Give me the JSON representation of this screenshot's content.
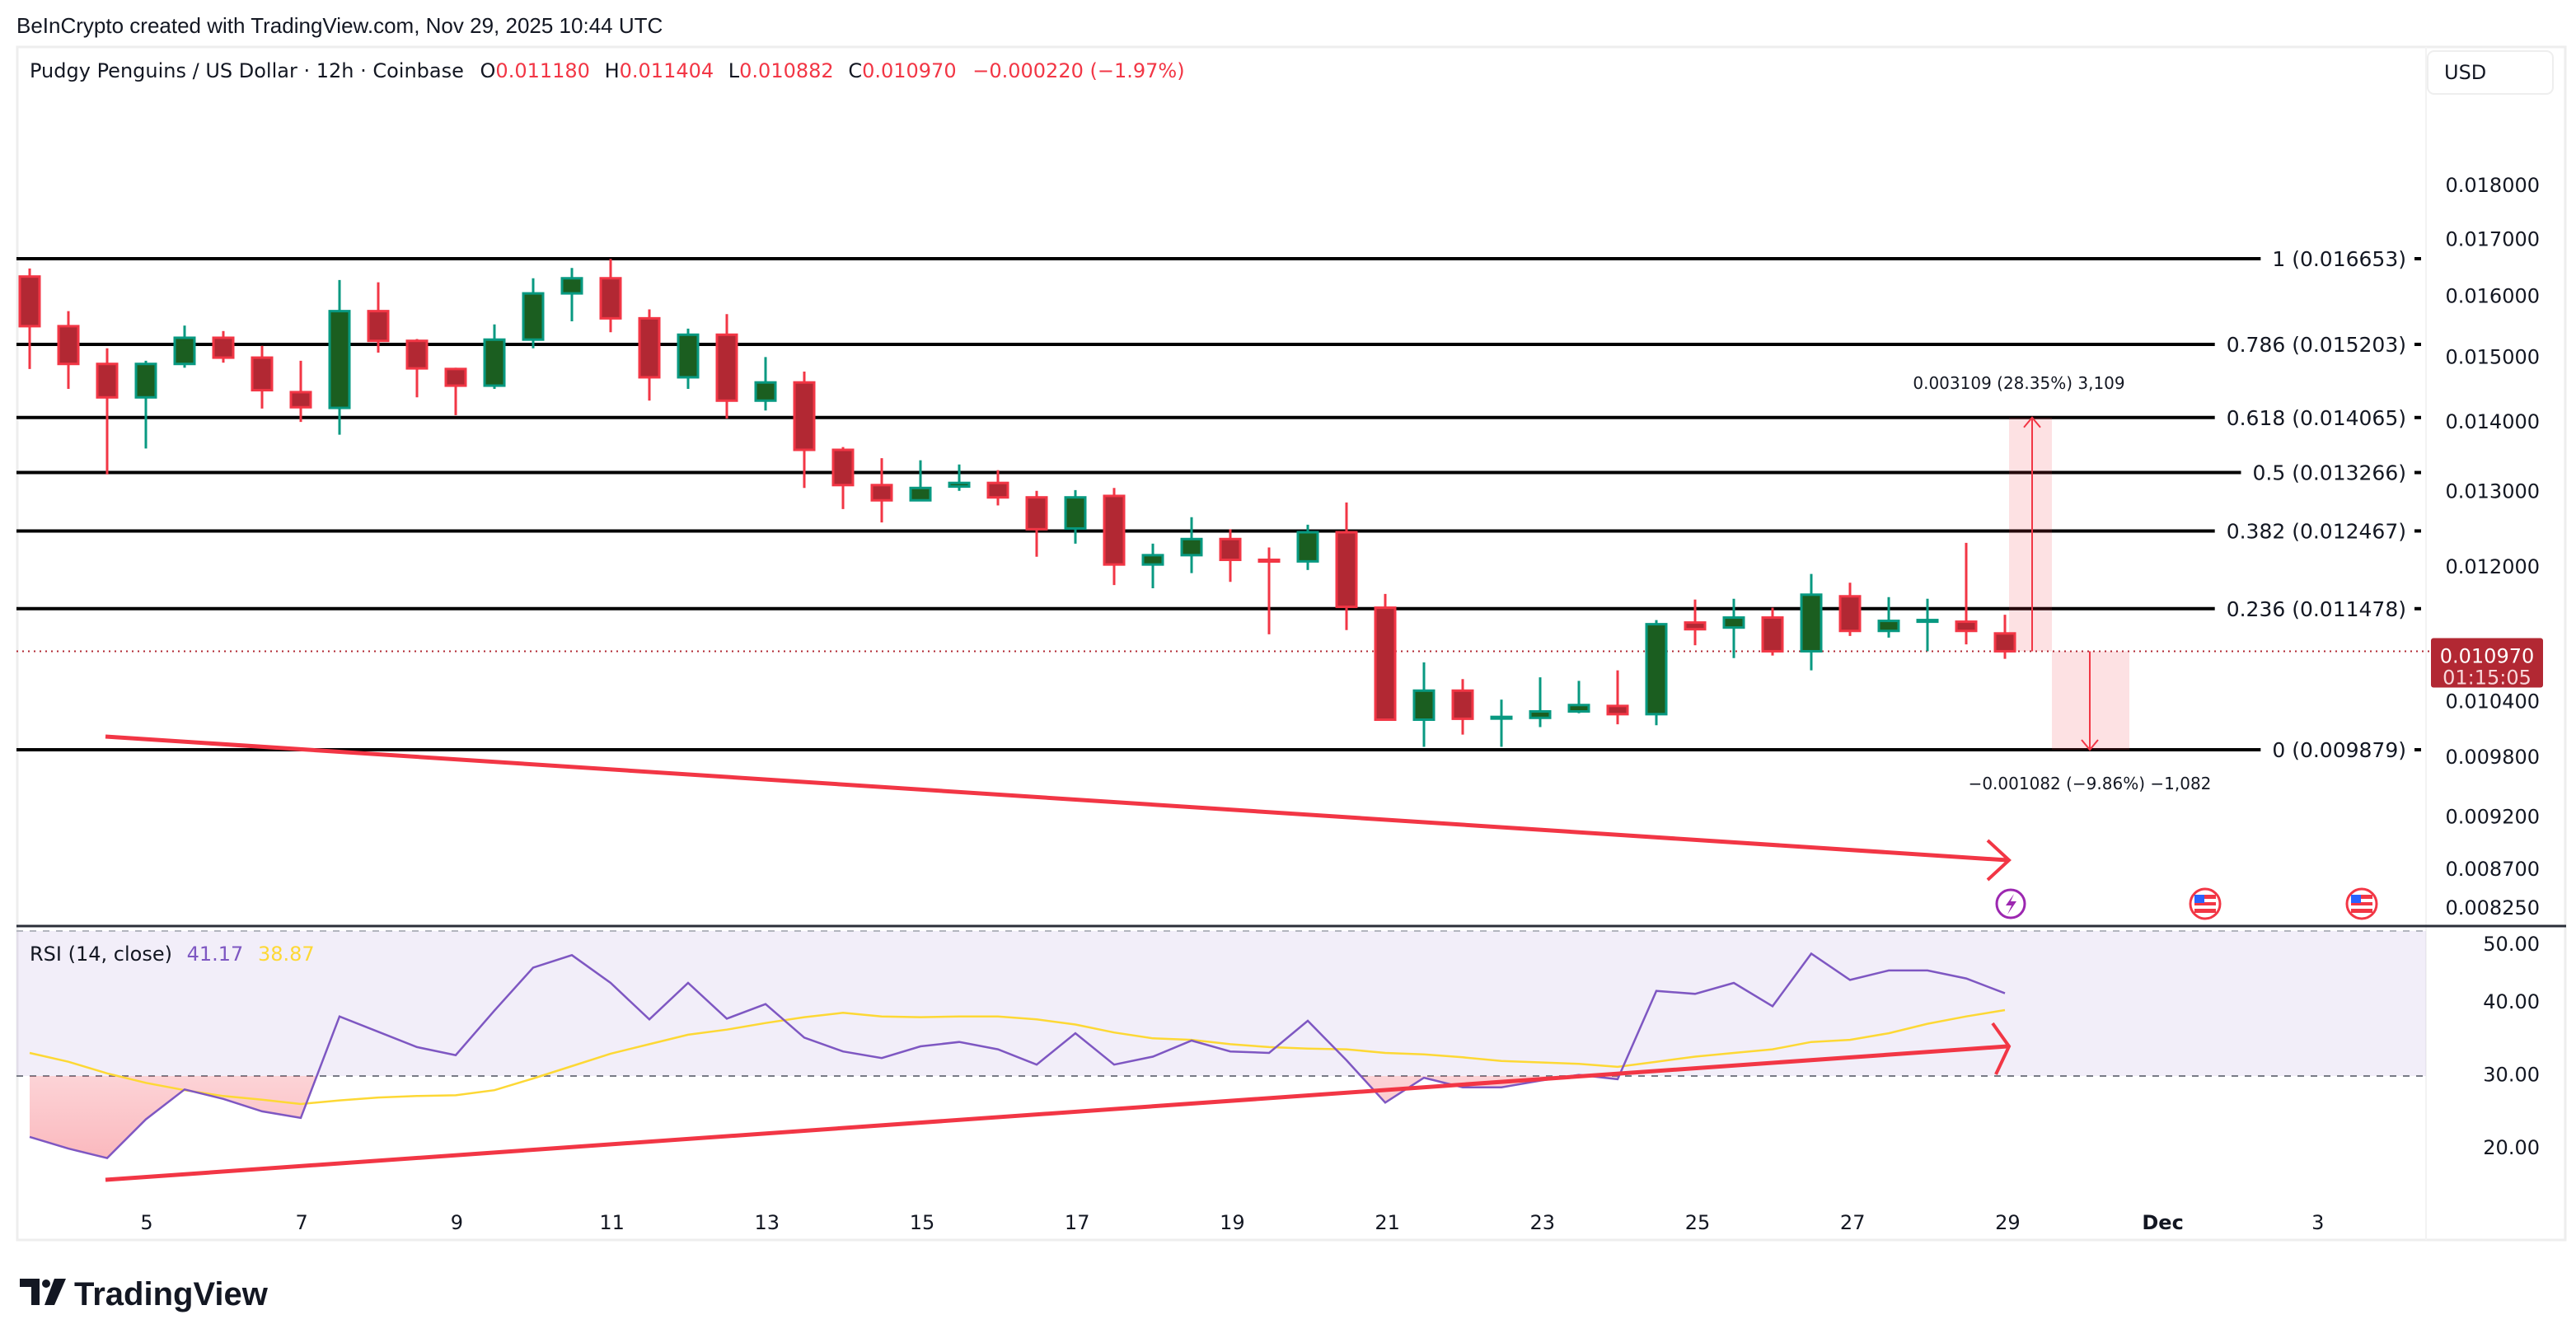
{
  "header": {
    "attribution": "BeInCrypto created with TradingView.com, Nov 29, 2025 10:44 UTC"
  },
  "legend": {
    "symbol": "Pudgy Penguins / US Dollar · 12h · Coinbase",
    "o_label": "O",
    "o": "0.011180",
    "h_label": "H",
    "h": "0.011404",
    "l_label": "L",
    "l": "0.010882",
    "c_label": "C",
    "c": "0.010970",
    "change": "−0.000220 (−1.97%)"
  },
  "currency_button": "USD",
  "current_price": {
    "price": "0.010970",
    "countdown": "01:15:05"
  },
  "measure": {
    "up_label": "0.003109 (28.35%) 3,109",
    "down_label": "−0.001082 (−9.86%) −1,082"
  },
  "rsi_legend": {
    "title": "RSI (14, close)",
    "rsi": "41.17",
    "ma": "38.87"
  },
  "brand": {
    "logo_text": "TradingView"
  },
  "colors": {
    "up_body": "#1b5e20",
    "up_border": "#089981",
    "down_body": "#b22833",
    "down_border": "#f23645",
    "rsi": "#7e57c2",
    "rsi_ma": "#fdd835",
    "trendline": "#f23645"
  },
  "chart_data": [
    {
      "type": "candlestick",
      "title": "Pudgy Penguins / US Dollar · 12h · Coinbase",
      "y_scale": "log",
      "ylim": [
        0.00825,
        0.0185
      ],
      "y_ticks": [
        "0.018000",
        "0.017000",
        "0.016000",
        "0.015000",
        "0.014000",
        "0.013000",
        "0.012000",
        "0.010400",
        "0.009800",
        "0.009200",
        "0.008700",
        "0.008250"
      ],
      "x_ticks": [
        "5",
        "7",
        "9",
        "11",
        "13",
        "15",
        "17",
        "19",
        "21",
        "23",
        "25",
        "27",
        "29",
        "Dec",
        "3"
      ],
      "fib_levels": [
        {
          "ratio": 1,
          "price": 0.016653,
          "label": "1 (0.016653)"
        },
        {
          "ratio": 0.786,
          "price": 0.015203,
          "label": "0.786 (0.015203)"
        },
        {
          "ratio": 0.618,
          "price": 0.014065,
          "label": "0.618 (0.014065)"
        },
        {
          "ratio": 0.5,
          "price": 0.013266,
          "label": "0.5 (0.013266)"
        },
        {
          "ratio": 0.382,
          "price": 0.012467,
          "label": "0.382 (0.012467)"
        },
        {
          "ratio": 0.236,
          "price": 0.011478,
          "label": "0.236 (0.011478)"
        },
        {
          "ratio": 0,
          "price": 0.009879,
          "label": "0 (0.009879)"
        }
      ],
      "ohlc": [
        [
          0.01634,
          0.01648,
          0.01481,
          0.0155
        ],
        [
          0.0155,
          0.01575,
          0.0145,
          0.01489
        ],
        [
          0.01489,
          0.01514,
          0.01324,
          0.01437
        ],
        [
          0.01437,
          0.01494,
          0.01361,
          0.01489
        ],
        [
          0.01489,
          0.01551,
          0.01483,
          0.01531
        ],
        [
          0.01531,
          0.01542,
          0.01491,
          0.01499
        ],
        [
          0.01499,
          0.01518,
          0.0142,
          0.01448
        ],
        [
          0.01445,
          0.01494,
          0.014,
          0.01422
        ],
        [
          0.01421,
          0.01628,
          0.01381,
          0.01575
        ],
        [
          0.01575,
          0.01624,
          0.01507,
          0.01526
        ],
        [
          0.01526,
          0.01529,
          0.01437,
          0.01482
        ],
        [
          0.01481,
          0.01483,
          0.0141,
          0.01455
        ],
        [
          0.01455,
          0.01553,
          0.0145,
          0.01528
        ],
        [
          0.01528,
          0.01631,
          0.01514,
          0.01605
        ],
        [
          0.01605,
          0.01649,
          0.01558,
          0.01631
        ],
        [
          0.01631,
          0.01665,
          0.0154,
          0.01563
        ],
        [
          0.01563,
          0.01578,
          0.01432,
          0.01468
        ],
        [
          0.01468,
          0.01546,
          0.0145,
          0.01536
        ],
        [
          0.01536,
          0.0157,
          0.01405,
          0.01432
        ],
        [
          0.01432,
          0.015,
          0.01417,
          0.0146
        ],
        [
          0.0146,
          0.01477,
          0.01305,
          0.01359
        ],
        [
          0.01359,
          0.01363,
          0.01276,
          0.01309
        ],
        [
          0.01309,
          0.01347,
          0.01258,
          0.01288
        ],
        [
          0.01288,
          0.01344,
          0.01288,
          0.01305
        ],
        [
          0.01307,
          0.01338,
          0.01301,
          0.01312
        ],
        [
          0.01312,
          0.0133,
          0.01281,
          0.01292
        ],
        [
          0.01292,
          0.01301,
          0.01213,
          0.01249
        ],
        [
          0.0125,
          0.01302,
          0.0123,
          0.01292
        ],
        [
          0.01294,
          0.01305,
          0.01177,
          0.01203
        ],
        [
          0.01203,
          0.0123,
          0.01173,
          0.01215
        ],
        [
          0.01215,
          0.01265,
          0.01192,
          0.01236
        ],
        [
          0.01236,
          0.01249,
          0.01181,
          0.01209
        ],
        [
          0.01209,
          0.01225,
          0.01117,
          0.01208
        ],
        [
          0.01207,
          0.01255,
          0.01196,
          0.01245
        ],
        [
          0.01245,
          0.01285,
          0.01122,
          0.0115
        ],
        [
          0.01149,
          0.01166,
          0.01019,
          0.0102
        ],
        [
          0.0102,
          0.01084,
          0.00991,
          0.01052
        ],
        [
          0.01052,
          0.01065,
          0.01004,
          0.01021
        ],
        [
          0.01022,
          0.01042,
          0.00991,
          0.01023
        ],
        [
          0.01022,
          0.01067,
          0.01012,
          0.01029
        ],
        [
          0.01029,
          0.01063,
          0.01027,
          0.01036
        ],
        [
          0.01035,
          0.01075,
          0.01015,
          0.01026
        ],
        [
          0.01026,
          0.01134,
          0.01014,
          0.01129
        ],
        [
          0.01131,
          0.01159,
          0.01104,
          0.01123
        ],
        [
          0.01125,
          0.0116,
          0.01089,
          0.01137
        ],
        [
          0.01137,
          0.01149,
          0.01092,
          0.01097
        ],
        [
          0.01097,
          0.01191,
          0.01075,
          0.01165
        ],
        [
          0.01163,
          0.0118,
          0.01115,
          0.01121
        ],
        [
          0.01121,
          0.01162,
          0.01113,
          0.01133
        ],
        [
          0.01133,
          0.0116,
          0.01097,
          0.01134
        ],
        [
          0.01132,
          0.01231,
          0.01105,
          0.01121
        ],
        [
          0.01118,
          0.011404,
          0.010882,
          0.01097
        ]
      ]
    },
    {
      "type": "line",
      "title": "RSI (14, close)",
      "ylim": [
        15,
        50
      ],
      "y_ticks": [
        "50.00",
        "40.00",
        "30.00",
        "20.00"
      ],
      "bands": [
        30,
        50
      ],
      "series": [
        {
          "name": "RSI",
          "values": [
            21.5,
            19.9,
            18.6,
            23.9,
            28.0,
            26.7,
            25.0,
            24.1,
            38.0,
            35.9,
            33.8,
            32.7,
            38.8,
            44.7,
            46.4,
            42.6,
            37.6,
            42.6,
            37.7,
            39.7,
            35.1,
            33.2,
            32.3,
            33.9,
            34.5,
            33.5,
            31.4,
            35.7,
            31.4,
            32.5,
            34.7,
            33.2,
            33.0,
            37.4,
            32.0,
            26.2,
            29.6,
            28.3,
            28.3,
            29.2,
            30.0,
            29.4,
            41.5,
            41.1,
            42.6,
            39.4,
            46.6,
            43.0,
            44.3,
            44.3,
            43.2,
            41.17
          ]
        },
        {
          "name": "RSI MA",
          "values": [
            33.0,
            31.8,
            30.2,
            28.9,
            27.9,
            27.1,
            26.6,
            26.0,
            26.5,
            26.9,
            27.1,
            27.2,
            27.9,
            29.5,
            31.2,
            32.9,
            34.2,
            35.5,
            36.2,
            37.1,
            37.9,
            38.5,
            38.0,
            37.9,
            38.0,
            38.0,
            37.6,
            36.9,
            35.8,
            35.0,
            34.8,
            34.2,
            33.8,
            33.6,
            33.5,
            33.0,
            32.8,
            32.4,
            31.9,
            31.7,
            31.5,
            31.1,
            31.8,
            32.5,
            33.0,
            33.5,
            34.5,
            34.8,
            35.7,
            37.0,
            38.0,
            38.87
          ]
        }
      ]
    }
  ]
}
